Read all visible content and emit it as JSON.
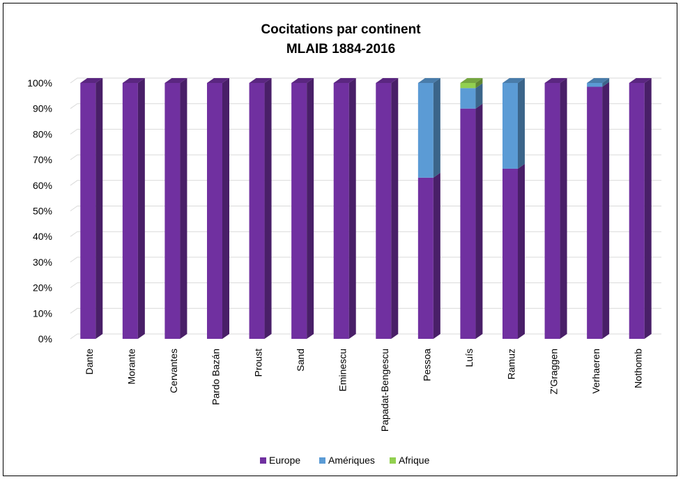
{
  "chart_data": {
    "type": "bar",
    "stacked": true,
    "percent": true,
    "title": "Cocitations par continent",
    "subtitle": "MLAIB 1884-2016",
    "xlabel": "",
    "ylabel": "",
    "ylim": [
      0,
      100
    ],
    "yticks": [
      "0%",
      "10%",
      "20%",
      "30%",
      "40%",
      "50%",
      "60%",
      "70%",
      "80%",
      "90%",
      "100%"
    ],
    "grid": true,
    "legend_position": "bottom",
    "categories": [
      "Dante",
      "Morante",
      "Cervantes",
      "Pardo Bazán",
      "Proust",
      "Sand",
      "Eminescu",
      "Papadat-Bengescu",
      "Pessoa",
      "Luís",
      "Ramuz",
      "Z'Graggen",
      "Verhaeren",
      "Nothomb"
    ],
    "series": [
      {
        "name": "Europe",
        "color": "#7030A0",
        "values": [
          100,
          100,
          100,
          100,
          100,
          100,
          100,
          100,
          63,
          90,
          66.5,
          100,
          98.5,
          100
        ]
      },
      {
        "name": "Amériques",
        "color": "#5B9BD5",
        "values": [
          0,
          0,
          0,
          0,
          0,
          0,
          0,
          0,
          37,
          8,
          33.5,
          0,
          1.5,
          0
        ]
      },
      {
        "name": "Afrique",
        "color": "#92D050",
        "values": [
          0,
          0,
          0,
          0,
          0,
          0,
          0,
          0,
          0,
          2,
          0,
          0,
          0,
          0
        ]
      }
    ]
  }
}
